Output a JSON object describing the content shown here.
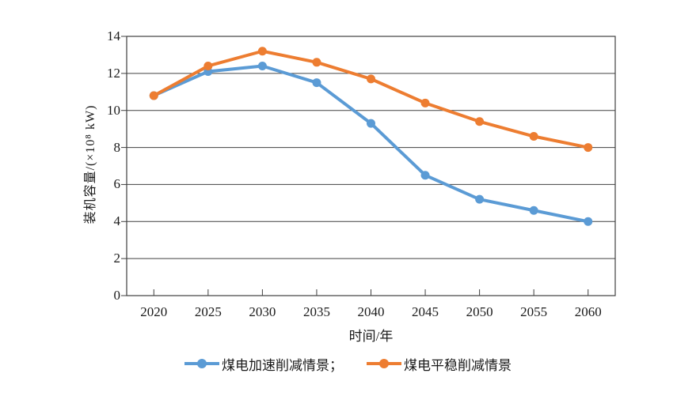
{
  "chart_data": {
    "type": "line",
    "title": "",
    "categories": [
      "2020",
      "2025",
      "2030",
      "2035",
      "2040",
      "2045",
      "2050",
      "2055",
      "2060"
    ],
    "series": [
      {
        "name": "煤电加速削减情景",
        "color": "#5B9BD5",
        "values": [
          10.8,
          12.1,
          12.4,
          11.5,
          9.3,
          6.5,
          5.2,
          4.6,
          4.0
        ]
      },
      {
        "name": "煤电平稳削减情景",
        "color": "#ED7D31",
        "values": [
          10.8,
          12.4,
          13.2,
          12.6,
          11.7,
          10.4,
          9.4,
          8.6,
          8.0
        ]
      }
    ],
    "legend_labels": [
      "煤电加速削减情景；",
      "煤电平稳削减情景"
    ],
    "xlabel": "时间/年",
    "ylabel": "装机容量/(×10⁸ kW)",
    "ylim": [
      0,
      14
    ],
    "yticks": [
      0,
      2,
      4,
      6,
      8,
      10,
      12,
      14
    ],
    "grid": "horizontal",
    "legend_position": "bottom",
    "axis_color": "#404040",
    "marker_style": "circle"
  }
}
